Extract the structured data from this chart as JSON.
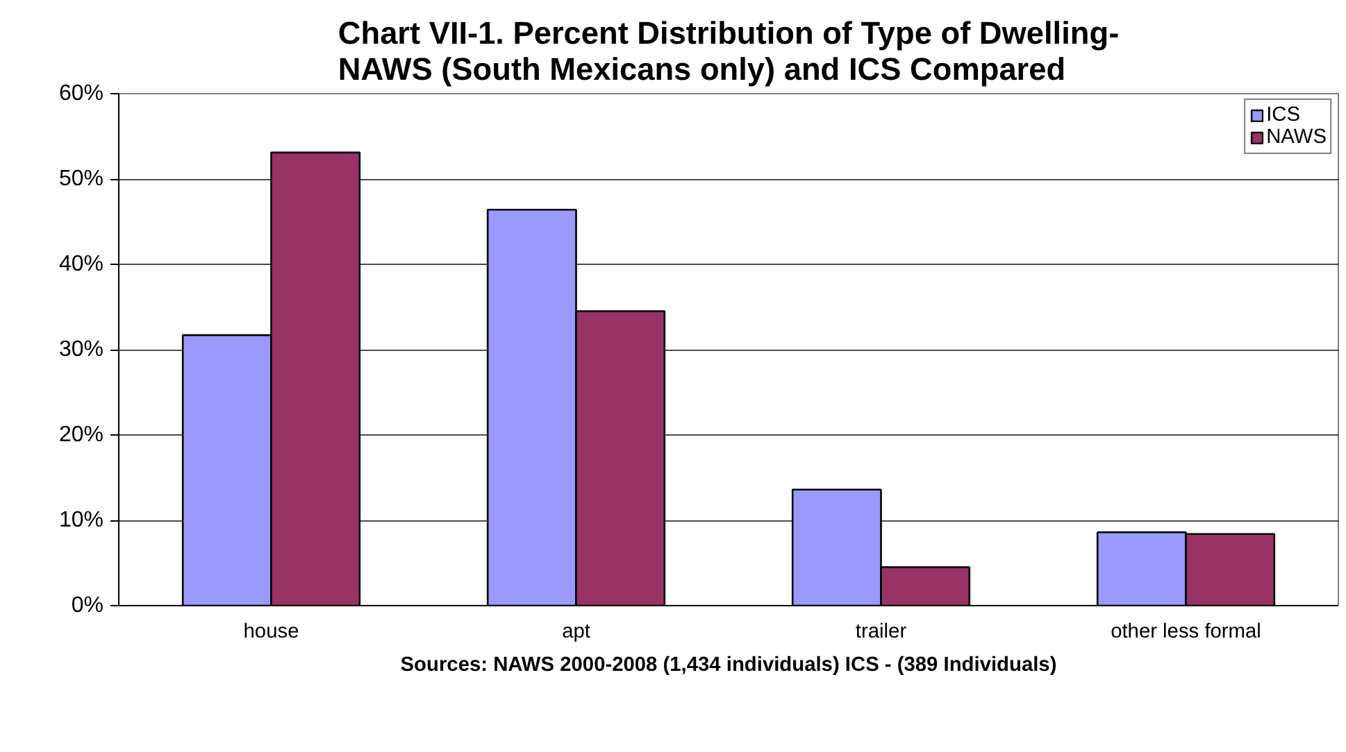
{
  "chart_data": {
    "type": "bar",
    "title": "Chart VII-1. Percent Distribution of Type of Dwelling-\nNAWS (South Mexicans only) and ICS Compared",
    "xlabel": "Sources: NAWS 2000-2008 (1,434 individuals) ICS - (389 Individuals)",
    "categories": [
      "house",
      "apt",
      "trailer",
      "other less formal"
    ],
    "series": [
      {
        "name": "ICS",
        "color": "#9999ff",
        "values": [
          31.7,
          46.4,
          13.6,
          8.6
        ]
      },
      {
        "name": "NAWS",
        "color": "#993366",
        "values": [
          53.1,
          34.5,
          4.5,
          8.4
        ]
      }
    ],
    "ylim": [
      0,
      60
    ],
    "yticks": [
      {
        "value": 0,
        "label": "0%"
      },
      {
        "value": 10,
        "label": "10%"
      },
      {
        "value": 20,
        "label": "20%"
      },
      {
        "value": 30,
        "label": "30%"
      },
      {
        "value": 40,
        "label": "40%"
      },
      {
        "value": 50,
        "label": "50%"
      },
      {
        "value": 60,
        "label": "60%"
      }
    ],
    "grid": "y",
    "legend": "top right"
  }
}
